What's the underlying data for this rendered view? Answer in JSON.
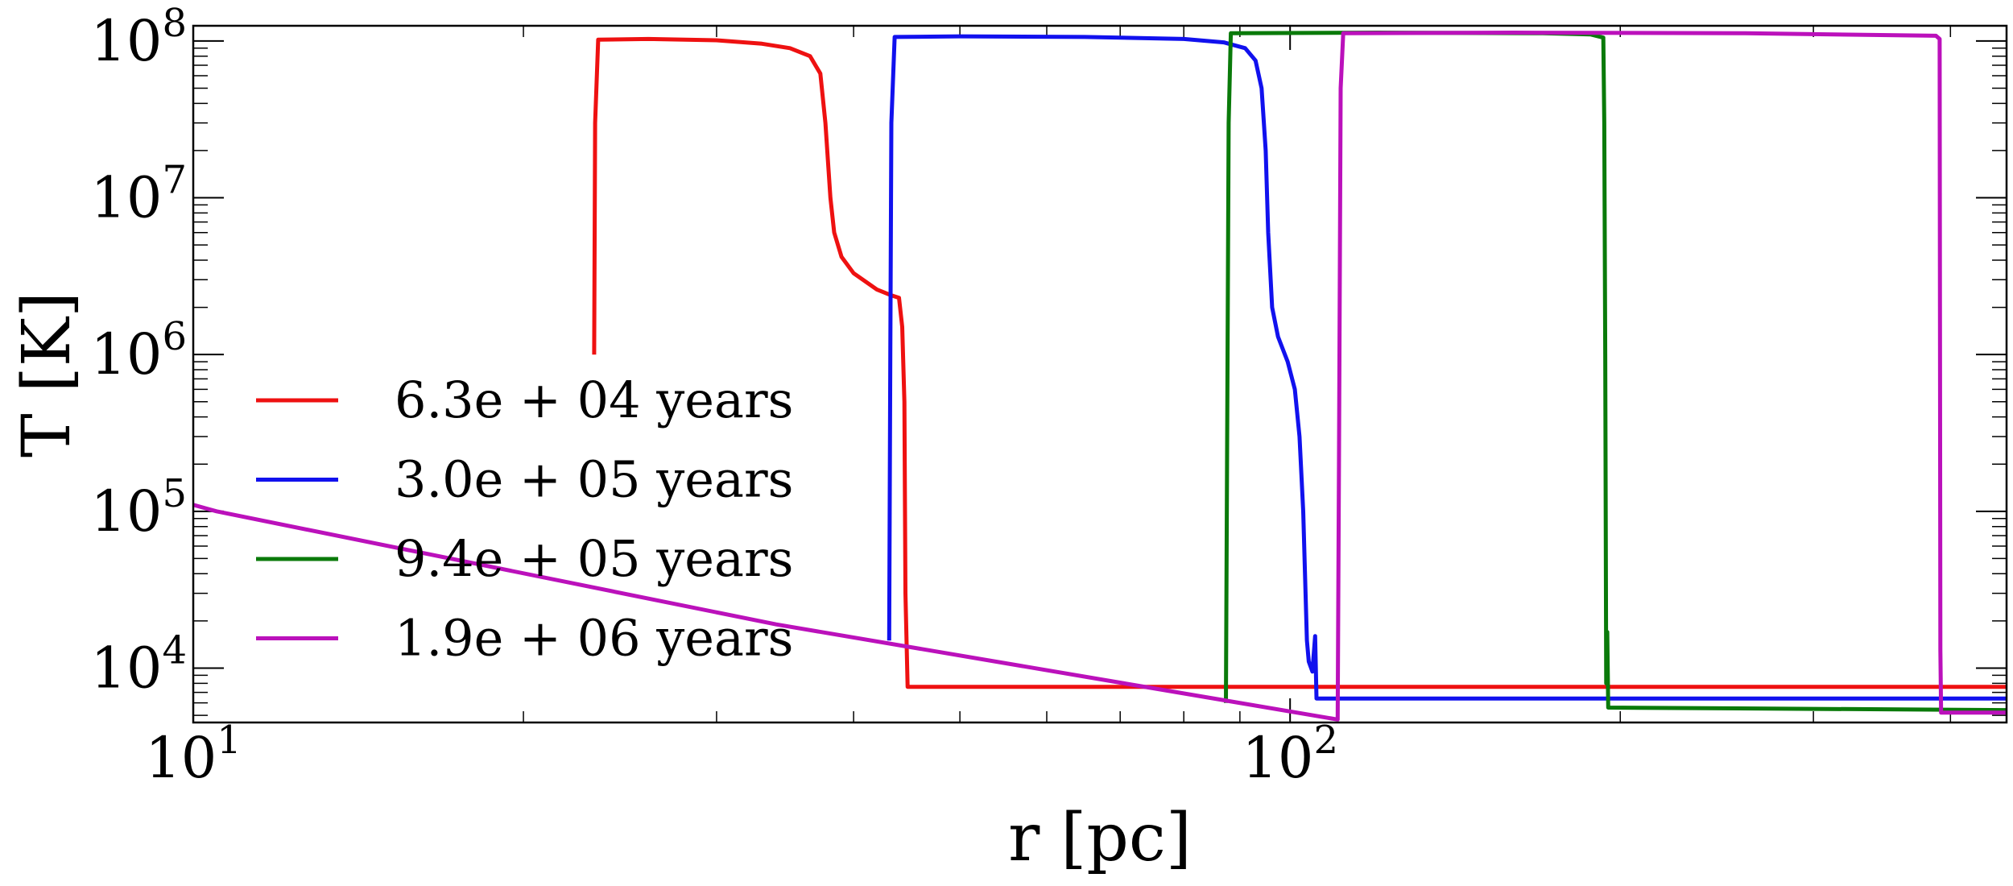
{
  "chart_data": {
    "type": "line",
    "xlabel": "r [pc]",
    "ylabel": "T [K]",
    "x_scale": "log",
    "y_scale": "log",
    "xlim": [
      10,
      450
    ],
    "ylim": [
      4500,
      125000000
    ],
    "x_ticks": [
      {
        "value": 10,
        "base": "10",
        "exp": "1"
      },
      {
        "value": 100,
        "base": "10",
        "exp": "2"
      }
    ],
    "y_ticks": [
      {
        "value": 10000,
        "base": "10",
        "exp": "4"
      },
      {
        "value": 100000,
        "base": "10",
        "exp": "5"
      },
      {
        "value": 1000000,
        "base": "10",
        "exp": "6"
      },
      {
        "value": 10000000,
        "base": "10",
        "exp": "7"
      },
      {
        "value": 100000000,
        "base": "10",
        "exp": "8"
      }
    ],
    "grid": false,
    "legend_position": "left",
    "series": [
      {
        "name": "6.3e + 04 years",
        "color": "#ee1111",
        "points": [
          [
            23.2,
            1000000
          ],
          [
            23.25,
            30000000
          ],
          [
            23.4,
            102000000
          ],
          [
            26,
            103000000
          ],
          [
            30,
            101000000
          ],
          [
            33,
            96000000
          ],
          [
            35,
            90000000
          ],
          [
            36.5,
            80000000
          ],
          [
            37.3,
            62000000
          ],
          [
            37.7,
            30000000
          ],
          [
            38.1,
            10000000
          ],
          [
            38.4,
            6000000
          ],
          [
            39,
            4200000
          ],
          [
            40,
            3300000
          ],
          [
            42,
            2600000
          ],
          [
            43.2,
            2400000
          ],
          [
            44.0,
            2300000
          ],
          [
            44.3,
            1500000
          ],
          [
            44.5,
            500000
          ],
          [
            44.6,
            30000
          ],
          [
            44.8,
            7600
          ],
          [
            450,
            7600
          ]
        ]
      },
      {
        "name": "3.0e + 05 years",
        "color": "#1111ee",
        "points": [
          [
            43.1,
            15000
          ],
          [
            43.2,
            1000000
          ],
          [
            43.3,
            30000000
          ],
          [
            43.6,
            106000000
          ],
          [
            50,
            107000000
          ],
          [
            65,
            106000000
          ],
          [
            80,
            103000000
          ],
          [
            87,
            98000000
          ],
          [
            91,
            90000000
          ],
          [
            93,
            75000000
          ],
          [
            94.2,
            50000000
          ],
          [
            95.0,
            20000000
          ],
          [
            95.5,
            6000000
          ],
          [
            96.3,
            2000000
          ],
          [
            97.5,
            1300000
          ],
          [
            99.5,
            900000
          ],
          [
            101,
            600000
          ],
          [
            102,
            300000
          ],
          [
            102.8,
            100000
          ],
          [
            103.3,
            30000
          ],
          [
            103.6,
            15000
          ],
          [
            104,
            11000
          ],
          [
            104.8,
            9500
          ],
          [
            105.4,
            16000
          ],
          [
            105.7,
            6400
          ],
          [
            450,
            6400
          ]
        ]
      },
      {
        "name": "9.4e + 05 years",
        "color": "#0a7a0a",
        "points": [
          [
            87.4,
            6000
          ],
          [
            87.6,
            200000
          ],
          [
            87.9,
            30000000
          ],
          [
            88.3,
            112000000
          ],
          [
            120,
            113000000
          ],
          [
            170,
            112000000
          ],
          [
            188,
            110000000
          ],
          [
            193,
            105000000
          ],
          [
            193.4,
            30000000
          ],
          [
            193.8,
            1000000
          ],
          [
            194.2,
            8000
          ],
          [
            194.6,
            17000
          ],
          [
            195,
            5600
          ],
          [
            450,
            5400
          ]
        ]
      },
      {
        "name": "1.9e + 06 years",
        "color": "#bb11bb",
        "points": [
          [
            10,
            110000
          ],
          [
            10.5,
            100000
          ],
          [
            34,
            19000
          ],
          [
            110.5,
            4700
          ],
          [
            110.8,
            200000
          ],
          [
            111.2,
            50000000
          ],
          [
            111.8,
            112000000
          ],
          [
            160,
            113000000
          ],
          [
            260,
            112000000
          ],
          [
            388,
            108000000
          ],
          [
            391,
            103000000
          ],
          [
            391.6,
            13000
          ],
          [
            392.2,
            5200
          ],
          [
            450,
            5200
          ]
        ]
      }
    ]
  }
}
